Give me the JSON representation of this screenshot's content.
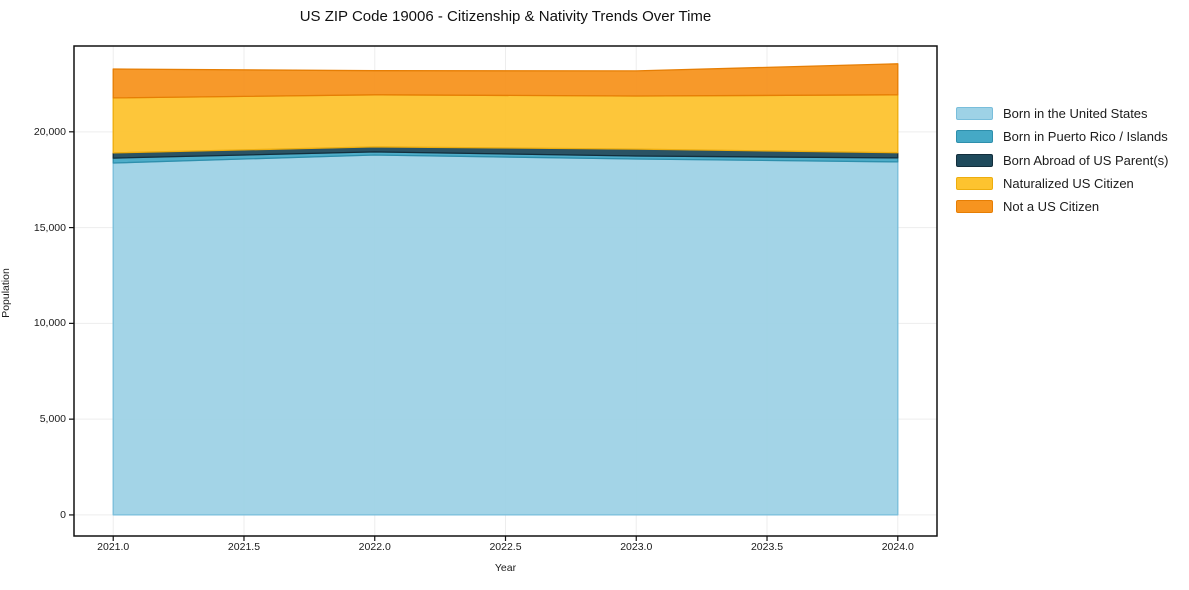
{
  "title": "US ZIP Code 19006 - Citizenship & Nativity Trends Over Time",
  "chart_data": {
    "type": "area",
    "stacked": true,
    "title": "US ZIP Code 19006 - Citizenship & Nativity Trends Over Time",
    "xlabel": "Year",
    "ylabel": "Population",
    "x": [
      2021,
      2022,
      2023,
      2024
    ],
    "series": [
      {
        "name": "Born in the United States",
        "values": [
          18370,
          18790,
          18580,
          18430
        ],
        "color": "#9ED2E6",
        "edge": "#79BEDB"
      },
      {
        "name": "Born in Puerto Rico / Islands",
        "values": [
          260,
          160,
          160,
          210
        ],
        "color": "#45A9C6",
        "edge": "#2E8FAC"
      },
      {
        "name": "Born Abroad of US Parent(s)",
        "values": [
          270,
          260,
          360,
          270
        ],
        "color": "#1F4A5C",
        "edge": "#132E3C"
      },
      {
        "name": "Naturalized US Citizen",
        "values": [
          2870,
          2720,
          2770,
          3020
        ],
        "color": "#FDC32F",
        "edge": "#EDAD0E"
      },
      {
        "name": "Not a US Citizen",
        "values": [
          1510,
          1260,
          1310,
          1620
        ],
        "color": "#F7941F",
        "edge": "#E67E04"
      }
    ],
    "totals": [
      23280,
      23190,
      23180,
      23550
    ],
    "x_ticks": [
      {
        "v": 2021.0,
        "label": "2021.0"
      },
      {
        "v": 2021.5,
        "label": "2021.5"
      },
      {
        "v": 2022.0,
        "label": "2022.0"
      },
      {
        "v": 2022.5,
        "label": "2022.5"
      },
      {
        "v": 2023.0,
        "label": "2023.0"
      },
      {
        "v": 2023.5,
        "label": "2023.5"
      },
      {
        "v": 2024.0,
        "label": "2024.0"
      }
    ],
    "y_ticks": [
      {
        "v": 0,
        "label": "0"
      },
      {
        "v": 5000,
        "label": "5,000"
      },
      {
        "v": 10000,
        "label": "10,000"
      },
      {
        "v": 15000,
        "label": "15,000"
      },
      {
        "v": 20000,
        "label": "20,000"
      }
    ],
    "xlim": [
      2020.85,
      2024.15
    ],
    "ylim": [
      -1100,
      24480
    ],
    "grid": true,
    "grid_color": "#ededed",
    "frame_color": "#111111",
    "legend_position": "right"
  }
}
